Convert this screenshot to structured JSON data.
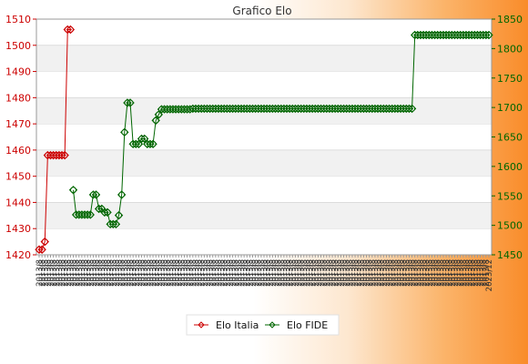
{
  "chart_data": {
    "type": "line",
    "title": "Grafico Elo",
    "xlabel": "",
    "ylabel": "",
    "grid": true,
    "legend_position": "bottom-center",
    "y_left": {
      "lim": [
        1420,
        1510
      ],
      "ticks": [
        1420,
        1430,
        1440,
        1450,
        1460,
        1470,
        1480,
        1490,
        1500,
        1510
      ],
      "color": "#cc0000"
    },
    "y_right": {
      "lim": [
        1450,
        1850
      ],
      "ticks": [
        1450,
        1500,
        1550,
        1600,
        1650,
        1700,
        1750,
        1800,
        1850
      ],
      "color": "#006600"
    },
    "x_tick_labels": [
      "2013/8",
      "2023/12"
    ],
    "series": [
      {
        "name": "Elo Italia",
        "axis": "left",
        "color": "#cc0000",
        "values": [
          1422,
          1422,
          1425,
          1458,
          1458,
          1458,
          1458,
          1458,
          1458,
          1458,
          1506,
          1506
        ]
      },
      {
        "name": "Elo FIDE",
        "axis": "right",
        "color": "#006600",
        "values": [
          null,
          null,
          null,
          null,
          null,
          null,
          null,
          null,
          null,
          null,
          null,
          null,
          1560,
          1518,
          1518,
          1518,
          1518,
          1518,
          1518,
          1552,
          1552,
          1528,
          1528,
          1522,
          1522,
          1502,
          1502,
          1502,
          1517,
          1552,
          1658,
          1708,
          1708,
          1638,
          1638,
          1638,
          1647,
          1647,
          1638,
          1638,
          1638,
          1678,
          1688,
          1697,
          1697,
          1697,
          1697,
          1697,
          1697,
          1697,
          1697,
          1697,
          1697,
          1697,
          1698,
          1698,
          1698,
          1698,
          1698,
          1698,
          1698,
          1698,
          1698,
          1698,
          1698,
          1698,
          1698,
          1698,
          1698,
          1698,
          1698,
          1698,
          1698,
          1698,
          1698,
          1698,
          1698,
          1698,
          1698,
          1698,
          1698,
          1698,
          1698,
          1698,
          1698,
          1698,
          1698,
          1698,
          1698,
          1698,
          1698,
          1698,
          1698,
          1698,
          1698,
          1698,
          1698,
          1698,
          1698,
          1698,
          1698,
          1698,
          1698,
          1698,
          1698,
          1698,
          1698,
          1698,
          1698,
          1698,
          1698,
          1698,
          1698,
          1698,
          1698,
          1698,
          1698,
          1698,
          1698,
          1698,
          1698,
          1698,
          1698,
          1698,
          1698,
          1698,
          1698,
          1698,
          1698,
          1698,
          1698,
          1698,
          1823,
          1823,
          1823,
          1823,
          1823,
          1823,
          1823,
          1823,
          1823,
          1823,
          1823,
          1823,
          1823,
          1823,
          1823,
          1823,
          1823,
          1823,
          1823,
          1823,
          1823,
          1823,
          1823,
          1823,
          1823,
          1823,
          1823
        ]
      }
    ]
  }
}
